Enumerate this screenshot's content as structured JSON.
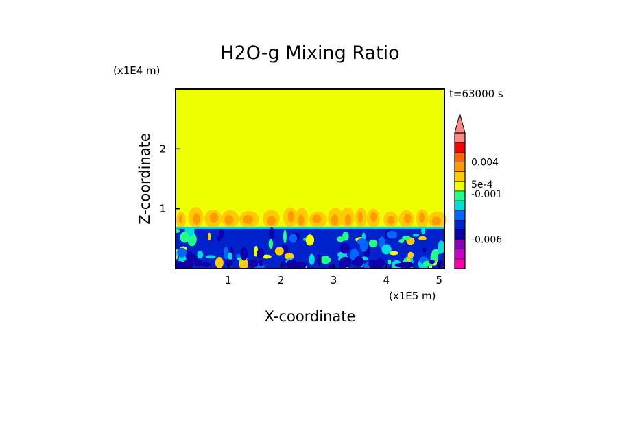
{
  "chart_data": {
    "type": "heatmap",
    "title": "H2O-g Mixing Ratio",
    "time_label": "t=63000 s",
    "xlabel": "X-coordinate",
    "ylabel": "Z-coordinate",
    "x_scale_label": "(x1E5 m)",
    "y_scale_label": "(x1E4 m)",
    "xlim": [
      0,
      5.1
    ],
    "ylim": [
      0,
      3.0
    ],
    "x_ticks": [
      {
        "value": 1,
        "label": "1"
      },
      {
        "value": 2,
        "label": "2"
      },
      {
        "value": 3,
        "label": "3"
      },
      {
        "value": 4,
        "label": "4"
      },
      {
        "value": 5,
        "label": "5"
      }
    ],
    "y_ticks": [
      {
        "value": 1,
        "label": "1"
      },
      {
        "value": 2,
        "label": "2"
      }
    ],
    "background_color": "#eeff00",
    "lower_layer_top": 0.7,
    "plume_top": 1.05,
    "colorbar": {
      "colors": [
        "#ff00aa",
        "#cc00cc",
        "#8800bb",
        "#1100aa",
        "#0022cc",
        "#0066ff",
        "#00dddd",
        "#22ff88",
        "#eeff00",
        "#ffcc00",
        "#ff9900",
        "#ff6600",
        "#ff0000",
        "#ff8888"
      ],
      "labels": [
        {
          "level": 11,
          "text": "0.004"
        },
        {
          "level": 8.7,
          "text": "5e-4"
        },
        {
          "level": 7.7,
          "text": "-0.001"
        },
        {
          "level": 3.0,
          "text": "-0.006"
        }
      ],
      "extend": "max"
    }
  }
}
